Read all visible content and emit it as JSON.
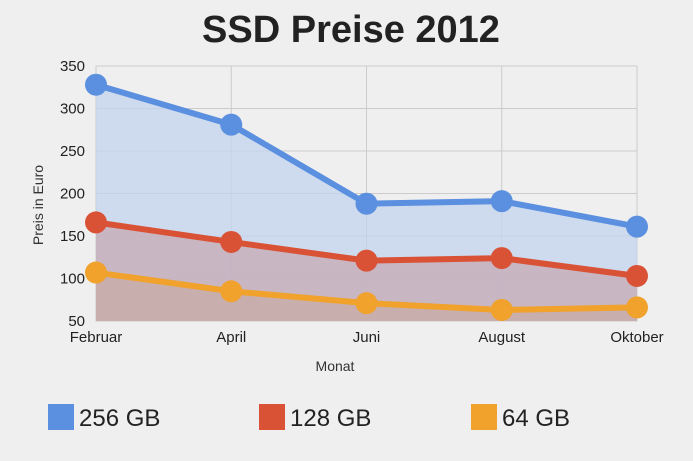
{
  "chart_data": {
    "type": "area",
    "title": "SSD Preise 2012",
    "xlabel": "Monat",
    "ylabel": "Preis in Euro",
    "categories": [
      "Februar",
      "April",
      "Juni",
      "August",
      "Oktober"
    ],
    "ylim": [
      50,
      350
    ],
    "yticks": [
      50,
      100,
      150,
      200,
      250,
      300,
      350
    ],
    "grid": true,
    "legend_position": "bottom",
    "series": [
      {
        "name": "256 GB",
        "values": [
          328,
          281,
          188,
          191,
          161
        ],
        "color": "#5b8fdf",
        "fill": "#c3d4ee"
      },
      {
        "name": "128 GB",
        "values": [
          166,
          143,
          121,
          124,
          103
        ],
        "color": "#d95236",
        "fill": "#c6a9b4"
      },
      {
        "name": "64 GB",
        "values": [
          107,
          85,
          71,
          63,
          66
        ],
        "color": "#f0a22c",
        "fill": "#c8aba6"
      }
    ]
  }
}
